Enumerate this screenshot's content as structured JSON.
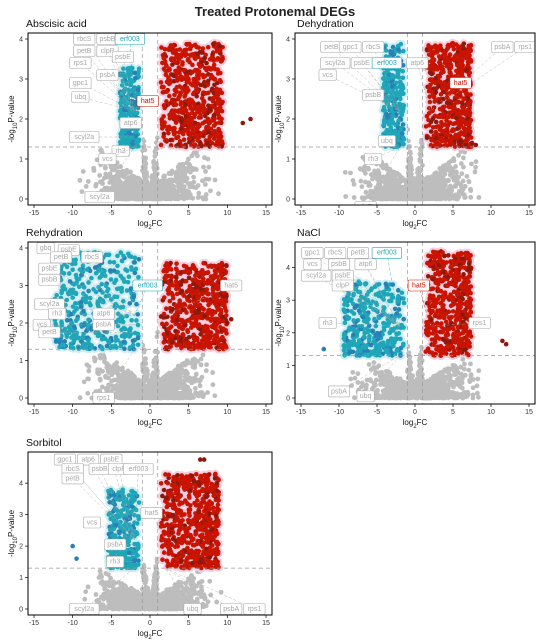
{
  "title": "Treated Protonemal DEGs",
  "colors": {
    "up": "#c81400",
    "up_dark": "#8b1a0c",
    "down": "#1fa6b8",
    "down_dark": "#2a7fb5",
    "ns": "#bdbdbd",
    "label_grey": "#a8a8a8",
    "up_shade": "#f7cde0",
    "down_shade": "#cdeef2"
  },
  "chart_data": [
    {
      "type": "scatter",
      "title": "Abscisic acid",
      "xlabel": "log2FC",
      "ylabel": "-log10P-value",
      "xlim": [
        -15,
        15
      ],
      "ylim": [
        0,
        4
      ],
      "xticks": [
        -15,
        -10,
        -5,
        0,
        5,
        10,
        15
      ],
      "yticks": [
        0,
        1,
        2,
        3,
        4
      ],
      "thresholds": {
        "fc": 1,
        "p": 1.3
      },
      "spread": {
        "up_max_x": 9,
        "up_max_y": 3.9,
        "down_min_x": -3.5,
        "down_max_y": 3.3,
        "outliers": [
          [
            12,
            1.9
          ],
          [
            13,
            2.0
          ]
        ]
      },
      "labels": [
        {
          "gene": "rbcS",
          "x": -8.5,
          "y": 4.0,
          "style": "grey"
        },
        {
          "gene": "psbB",
          "x": -5.5,
          "y": 4.0,
          "style": "grey"
        },
        {
          "gene": "erf003",
          "x": -2.6,
          "y": 4.0,
          "style": "down"
        },
        {
          "gene": "petB",
          "x": -8.5,
          "y": 3.7,
          "style": "grey"
        },
        {
          "gene": "clpP",
          "x": -5.5,
          "y": 3.7,
          "style": "grey"
        },
        {
          "gene": "psbE",
          "x": -3.5,
          "y": 3.55,
          "style": "grey"
        },
        {
          "gene": "rps1",
          "x": -9.0,
          "y": 3.4,
          "style": "grey"
        },
        {
          "gene": "psbA",
          "x": -5.5,
          "y": 3.1,
          "style": "grey"
        },
        {
          "gene": "gpc1",
          "x": -9.0,
          "y": 2.9,
          "style": "grey"
        },
        {
          "gene": "ubq",
          "x": -9.0,
          "y": 2.55,
          "style": "grey"
        },
        {
          "gene": "hat5",
          "x": -0.3,
          "y": 2.45,
          "style": "up"
        },
        {
          "gene": "atp6",
          "x": -2.5,
          "y": 1.9,
          "style": "grey"
        },
        {
          "gene": "scyl2a",
          "x": -8.5,
          "y": 1.55,
          "style": "grey"
        },
        {
          "gene": "rh3",
          "x": -3.8,
          "y": 1.2,
          "style": "grey"
        },
        {
          "gene": "vcs",
          "x": -5.5,
          "y": 1.0,
          "style": "grey"
        },
        {
          "gene": "scyl2a",
          "x": -6.5,
          "y": 0.05,
          "style": "grey"
        }
      ]
    },
    {
      "type": "scatter",
      "title": "Dehydration",
      "xlabel": "log2FC",
      "ylabel": "-log10P-value",
      "xlim": [
        -15,
        15
      ],
      "ylim": [
        0,
        4
      ],
      "xticks": [
        -15,
        -10,
        -5,
        0,
        5,
        10,
        15
      ],
      "yticks": [
        0,
        1,
        2,
        3,
        4
      ],
      "thresholds": {
        "fc": 1,
        "p": 1.3
      },
      "spread": {
        "up_max_x": 7,
        "up_max_y": 3.9,
        "down_min_x": -3.8,
        "down_max_y": 3.9,
        "outliers": [
          [
            7.5,
            1.4
          ],
          [
            8,
            1.35
          ]
        ]
      },
      "labels": [
        {
          "gene": "petB",
          "x": -11,
          "y": 3.8,
          "style": "grey"
        },
        {
          "gene": "gpc1",
          "x": -8.5,
          "y": 3.8,
          "style": "grey"
        },
        {
          "gene": "rbcS",
          "x": -5.5,
          "y": 3.8,
          "style": "grey"
        },
        {
          "gene": "psbA",
          "x": 11.5,
          "y": 3.8,
          "style": "grey"
        },
        {
          "gene": "rps1",
          "x": 14.5,
          "y": 3.8,
          "style": "grey"
        },
        {
          "gene": "scyl2a",
          "x": -10.5,
          "y": 3.4,
          "style": "grey"
        },
        {
          "gene": "psbE",
          "x": -7.0,
          "y": 3.4,
          "style": "grey"
        },
        {
          "gene": "erf003",
          "x": -3.7,
          "y": 3.4,
          "style": "down"
        },
        {
          "gene": "atp6",
          "x": 0.3,
          "y": 3.4,
          "style": "grey"
        },
        {
          "gene": "vcs",
          "x": -11.5,
          "y": 3.1,
          "style": "grey"
        },
        {
          "gene": "hat5",
          "x": 6.0,
          "y": 2.9,
          "style": "up"
        },
        {
          "gene": "psbB",
          "x": -5.5,
          "y": 2.6,
          "style": "grey"
        },
        {
          "gene": "ubq",
          "x": -3.7,
          "y": 1.45,
          "style": "grey"
        },
        {
          "gene": "rh3",
          "x": -5.5,
          "y": 1.0,
          "style": "grey"
        },
        {
          "gene": "clpP",
          "x": -6.5,
          "y": -0.2,
          "style": "grey"
        }
      ]
    },
    {
      "type": "scatter",
      "title": "Rehydration",
      "xlabel": "log2FC",
      "ylabel": "-log10P-value",
      "xlim": [
        -15,
        15
      ],
      "ylim": [
        0,
        4
      ],
      "xticks": [
        -15,
        -10,
        -5,
        0,
        5,
        10,
        15
      ],
      "yticks": [
        0,
        1,
        2,
        3,
        4
      ],
      "thresholds": {
        "fc": 1,
        "p": 1.3
      },
      "spread": {
        "up_max_x": 9.5,
        "up_max_y": 3.6,
        "down_min_x": -12,
        "down_max_y": 3.9,
        "outliers": [
          [
            10,
            2.0
          ],
          [
            10.5,
            2.1
          ]
        ]
      },
      "labels": [
        {
          "gene": "gbq",
          "x": -13.5,
          "y": 4.0,
          "style": "grey"
        },
        {
          "gene": "psbE",
          "x": -10.5,
          "y": 3.95,
          "style": "grey"
        },
        {
          "gene": "petB",
          "x": -11.5,
          "y": 3.75,
          "style": "grey"
        },
        {
          "gene": "rbcS",
          "x": -7.5,
          "y": 3.75,
          "style": "grey"
        },
        {
          "gene": "psbE",
          "x": -13.0,
          "y": 3.45,
          "style": "grey"
        },
        {
          "gene": "psbB",
          "x": -13.0,
          "y": 3.15,
          "style": "grey"
        },
        {
          "gene": "erf003",
          "x": -0.3,
          "y": 3.0,
          "style": "down"
        },
        {
          "gene": "hat5",
          "x": 10.5,
          "y": 3.0,
          "style": "grey"
        },
        {
          "gene": "scyl2a",
          "x": -13.0,
          "y": 2.5,
          "style": "grey"
        },
        {
          "gene": "rh3",
          "x": -12.0,
          "y": 2.25,
          "style": "grey"
        },
        {
          "gene": "atp6",
          "x": -6.0,
          "y": 2.25,
          "style": "grey"
        },
        {
          "gene": "vcs",
          "x": -14.0,
          "y": 1.95,
          "style": "grey"
        },
        {
          "gene": "psbA",
          "x": -6.0,
          "y": 1.95,
          "style": "grey"
        },
        {
          "gene": "petB",
          "x": -13.0,
          "y": 1.75,
          "style": "grey"
        },
        {
          "gene": "rps1",
          "x": -6.0,
          "y": 0.0,
          "style": "grey"
        }
      ]
    },
    {
      "type": "scatter",
      "title": "NaCl",
      "xlabel": "log2FC",
      "ylabel": "-log10P-value",
      "xlim": [
        -15,
        15
      ],
      "ylim": [
        0,
        4.6
      ],
      "xticks": [
        -15,
        -10,
        -5,
        0,
        5,
        10,
        15
      ],
      "yticks": [
        0,
        1,
        2,
        3,
        4
      ],
      "thresholds": {
        "fc": 1,
        "p": 1.3
      },
      "spread": {
        "up_max_x": 7,
        "up_max_y": 4.5,
        "down_min_x": -9,
        "down_max_y": 3.6,
        "outliers": [
          [
            11.5,
            1.75
          ],
          [
            12,
            1.65
          ],
          [
            -11,
            2.2
          ],
          [
            -12,
            1.5
          ]
        ]
      },
      "labels": [
        {
          "gene": "gpc1",
          "x": -13.5,
          "y": 4.45,
          "style": "grey"
        },
        {
          "gene": "rbcS",
          "x": -10.5,
          "y": 4.45,
          "style": "grey"
        },
        {
          "gene": "petB",
          "x": -7.5,
          "y": 4.45,
          "style": "grey"
        },
        {
          "gene": "erf003",
          "x": -3.7,
          "y": 4.45,
          "style": "down"
        },
        {
          "gene": "vcs",
          "x": -13.5,
          "y": 4.1,
          "style": "grey"
        },
        {
          "gene": "psbB",
          "x": -10.0,
          "y": 4.1,
          "style": "grey"
        },
        {
          "gene": "atp6",
          "x": -6.5,
          "y": 4.1,
          "style": "grey"
        },
        {
          "gene": "scyl2a",
          "x": -13.0,
          "y": 3.75,
          "style": "grey"
        },
        {
          "gene": "psbE",
          "x": -9.5,
          "y": 3.75,
          "style": "grey"
        },
        {
          "gene": "hat5",
          "x": 0.5,
          "y": 3.45,
          "style": "up"
        },
        {
          "gene": "clpP",
          "x": -9.5,
          "y": 3.45,
          "style": "grey"
        },
        {
          "gene": "rps1",
          "x": 8.5,
          "y": 2.3,
          "style": "grey"
        },
        {
          "gene": "rh3",
          "x": -11.5,
          "y": 2.3,
          "style": "grey"
        },
        {
          "gene": "psbA",
          "x": -10.0,
          "y": 0.2,
          "style": "grey"
        },
        {
          "gene": "ubq",
          "x": -6.5,
          "y": 0.05,
          "style": "grey"
        }
      ]
    },
    {
      "type": "scatter",
      "title": "Sorbitol",
      "xlabel": "log2FC",
      "ylabel": "-log10P-value",
      "xlim": [
        -15,
        15
      ],
      "ylim": [
        0,
        4.8
      ],
      "xticks": [
        -15,
        -10,
        -5,
        0,
        5,
        10,
        15
      ],
      "yticks": [
        0,
        1,
        2,
        3,
        4
      ],
      "thresholds": {
        "fc": 1,
        "p": 1.3
      },
      "spread": {
        "up_max_x": 8.5,
        "up_max_y": 4.3,
        "down_min_x": -5,
        "down_max_y": 3.8,
        "outliers": [
          [
            6.5,
            4.75
          ],
          [
            7,
            4.75
          ],
          [
            -9.5,
            1.6
          ],
          [
            -10,
            2.0
          ]
        ]
      },
      "labels": [
        {
          "gene": "gpc1",
          "x": -11.0,
          "y": 4.75,
          "style": "grey"
        },
        {
          "gene": "atp6",
          "x": -8.0,
          "y": 4.75,
          "style": "grey"
        },
        {
          "gene": "psbE",
          "x": -5.0,
          "y": 4.75,
          "style": "grey"
        },
        {
          "gene": "rbcS",
          "x": -10.0,
          "y": 4.45,
          "style": "grey"
        },
        {
          "gene": "psbB",
          "x": -6.5,
          "y": 4.45,
          "style": "grey"
        },
        {
          "gene": "clpP",
          "x": -4.0,
          "y": 4.45,
          "style": "grey"
        },
        {
          "gene": "erf003",
          "x": -1.5,
          "y": 4.45,
          "style": "grey"
        },
        {
          "gene": "petB",
          "x": -10.0,
          "y": 4.15,
          "style": "grey"
        },
        {
          "gene": "hat5",
          "x": 0.2,
          "y": 3.05,
          "style": "grey"
        },
        {
          "gene": "vcs",
          "x": -7.5,
          "y": 2.75,
          "style": "grey"
        },
        {
          "gene": "psbA",
          "x": -4.5,
          "y": 2.05,
          "style": "grey"
        },
        {
          "gene": "rh3",
          "x": -4.5,
          "y": 1.5,
          "style": "grey"
        },
        {
          "gene": "scyl2a",
          "x": -8.5,
          "y": 0.0,
          "style": "grey"
        },
        {
          "gene": "ubq",
          "x": 5.5,
          "y": 0.0,
          "style": "grey"
        },
        {
          "gene": "psbA",
          "x": 10.5,
          "y": 0.0,
          "style": "grey"
        },
        {
          "gene": "rps1",
          "x": 13.5,
          "y": 0.0,
          "style": "grey"
        }
      ]
    }
  ]
}
